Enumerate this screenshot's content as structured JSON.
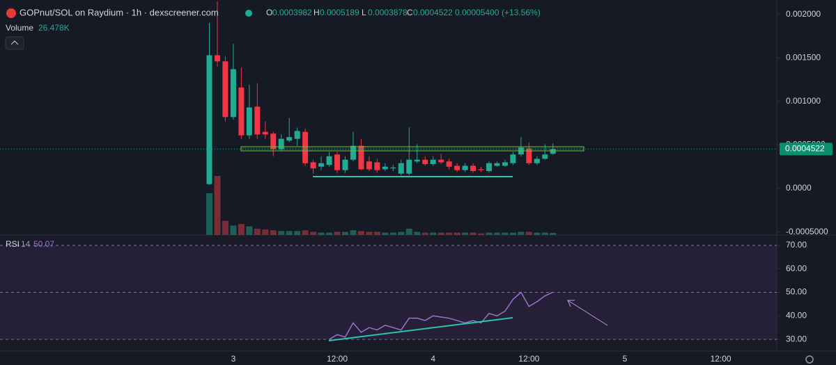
{
  "header": {
    "title": "GOPnut/SOL on Raydium · 1h · dexscreener.com",
    "ohlc_keys": [
      "O",
      "H",
      "L",
      "C"
    ],
    "change": {
      "value": 5.4e-05,
      "label": "0.00005400"
    },
    "change_pct": {
      "value": 13.56,
      "label": "(+13.56%)"
    },
    "volume_title": "Volume"
  },
  "chart_data": [
    {
      "type": "candlestick",
      "categories": [
        null,
        null,
        null,
        "3",
        null,
        null,
        null,
        null,
        null,
        null,
        null,
        null,
        null,
        null,
        null,
        null,
        "12:00",
        null,
        null,
        null,
        null,
        null,
        null,
        null,
        null,
        null,
        null,
        null,
        "4",
        null,
        null,
        null,
        null,
        null,
        null,
        null,
        null,
        null,
        null,
        null,
        "12:00",
        null,
        null,
        null,
        null,
        null,
        null,
        null,
        null,
        null,
        null,
        null,
        "5",
        null,
        null,
        null,
        null,
        null,
        null,
        null,
        null,
        null,
        null,
        null,
        "12:00",
        null,
        null,
        null,
        null,
        null,
        null
      ],
      "open": [
        5e-05,
        0.00153,
        0.00146,
        0.00082,
        0.00116,
        0.00061,
        0.00094,
        0.00065,
        0.00063,
        0.00045,
        0.00055,
        0.00057,
        0.00065,
        0.0003,
        0.00025,
        0.00027,
        0.00039,
        0.00021,
        0.00033,
        0.00049,
        0.00031,
        0.0003,
        0.00022,
        0.00023,
        0.00017,
        0.00017,
        0.00031,
        0.00033,
        0.00028,
        0.00033,
        0.00031,
        0.00026,
        0.00021,
        0.00026,
        0.00022,
        0.0002,
        0.00026,
        0.00026,
        0.00029,
        0.00039,
        0.00046,
        0.00029,
        0.00034,
        0.0003982,
        null,
        null,
        null,
        null,
        null,
        null,
        null,
        null,
        null,
        null,
        null,
        null,
        null,
        null,
        null,
        null,
        null,
        null,
        null,
        null,
        null,
        null,
        null,
        null,
        null,
        null,
        null
      ],
      "high": [
        0.0019,
        0.00215,
        0.00152,
        0.00166,
        0.00139,
        0.00119,
        0.00121,
        0.00077,
        0.00065,
        0.00062,
        0.00081,
        0.0007,
        0.00069,
        0.00033,
        0.00037,
        0.00042,
        0.00042,
        0.00037,
        0.00065,
        0.00057,
        0.00037,
        0.00034,
        0.00029,
        0.00027,
        0.00033,
        0.0007,
        0.00051,
        0.00037,
        0.00037,
        0.0004,
        0.00034,
        0.00029,
        0.00029,
        0.00029,
        0.00025,
        0.00031,
        0.00031,
        0.00033,
        0.00042,
        0.00059,
        0.00053,
        0.00037,
        0.00051,
        0.0005189,
        null,
        null,
        null,
        null,
        null,
        null,
        null,
        null,
        null,
        null,
        null,
        null,
        null,
        null,
        null,
        null,
        null,
        null,
        null,
        null,
        null,
        null,
        null,
        null,
        null,
        null,
        null
      ],
      "low": [
        4e-05,
        0.0014,
        0.00077,
        0.00079,
        0.00057,
        0.00057,
        0.00057,
        0.00057,
        0.00037,
        0.00043,
        0.00053,
        0.00049,
        0.00026,
        0.00017,
        0.00021,
        0.00025,
        0.00018,
        0.00018,
        0.00031,
        0.00021,
        0.0002,
        0.00018,
        0.0002,
        0.0002,
        0.00015,
        0.00015,
        0.00029,
        0.00026,
        0.00026,
        0.00028,
        0.00022,
        0.00019,
        0.00019,
        0.00018,
        0.00019,
        0.00018,
        0.00025,
        0.00025,
        0.00027,
        0.00037,
        0.00027,
        0.00027,
        0.00033,
        0.0003878,
        null,
        null,
        null,
        null,
        null,
        null,
        null,
        null,
        null,
        null,
        null,
        null,
        null,
        null,
        null,
        null,
        null,
        null,
        null,
        null,
        null,
        null,
        null,
        null,
        null,
        null,
        null
      ],
      "close": [
        0.00153,
        0.00146,
        0.00082,
        0.00137,
        0.00061,
        0.00093,
        0.00062,
        0.00062,
        0.00045,
        0.00057,
        0.00059,
        0.00066,
        0.00029,
        0.00023,
        0.00029,
        0.00037,
        0.00021,
        0.00033,
        0.00049,
        0.00022,
        0.00022,
        0.00021,
        0.00025,
        0.00024,
        0.00029,
        0.00033,
        0.00033,
        0.00028,
        0.00033,
        0.0003,
        0.00025,
        0.00021,
        0.00026,
        0.0002,
        0.00021,
        0.00029,
        0.00029,
        0.0003,
        0.00039,
        0.00047,
        0.00029,
        0.00034,
        0.00039,
        0.0004522,
        null,
        null,
        null,
        null,
        null,
        null,
        null,
        null,
        null,
        null,
        null,
        null,
        null,
        null,
        null,
        null,
        null,
        null,
        null,
        null,
        null,
        null,
        null,
        null,
        null,
        null,
        null
      ],
      "volume": [
        530000,
        750000,
        180000,
        120000,
        140000,
        110000,
        80000,
        70000,
        60000,
        50000,
        50000,
        50000,
        60000,
        40000,
        30000,
        30000,
        40000,
        40000,
        60000,
        50000,
        40000,
        40000,
        30000,
        30000,
        40000,
        80000,
        40000,
        30000,
        30000,
        30000,
        30000,
        30000,
        30000,
        30000,
        20000,
        30000,
        30000,
        30000,
        30000,
        40000,
        40000,
        30000,
        30000,
        26478,
        null,
        null,
        null,
        null,
        null,
        null,
        null,
        null,
        null,
        null,
        null,
        null,
        null,
        null,
        null,
        null,
        null,
        null,
        null,
        null,
        null,
        null,
        null,
        null,
        null,
        null,
        null
      ],
      "volume_labels": [
        null,
        null,
        null,
        null,
        null,
        null,
        null,
        null,
        null,
        null,
        null,
        null,
        null,
        null,
        null,
        null,
        null,
        null,
        null,
        null,
        null,
        null,
        null,
        null,
        null,
        null,
        null,
        null,
        null,
        null,
        null,
        null,
        null,
        null,
        null,
        null,
        null,
        null,
        null,
        null,
        null,
        null,
        null,
        "26.478K",
        null,
        null,
        null,
        null,
        null,
        null,
        null,
        null,
        null,
        null,
        null,
        null,
        null,
        null,
        null,
        null,
        null,
        null,
        null,
        null,
        null,
        null,
        null,
        null,
        null,
        null,
        null
      ],
      "ylim": [
        -0.000535,
        0.002165
      ],
      "yticks": [
        {
          "value": 0.002,
          "label": "0.002000"
        },
        {
          "value": 0.0015,
          "label": "0.001500"
        },
        {
          "value": 0.001,
          "label": "0.001000"
        },
        {
          "value": 0.0005,
          "label": "0.0005000"
        },
        {
          "value": 0,
          "label": "0.0000"
        },
        {
          "value": -0.0005,
          "label": "-0.0005000"
        }
      ],
      "colors": {
        "up": "#22ab94",
        "down": "#f23645",
        "volume_up": "#1c5f58",
        "volume_down": "#7a2d36"
      }
    },
    {
      "type": "line",
      "title": "RSI",
      "period": 14,
      "color": "#9575cd",
      "values": [
        null,
        null,
        null,
        null,
        null,
        null,
        null,
        null,
        null,
        null,
        null,
        null,
        null,
        null,
        null,
        30,
        32,
        31,
        37,
        33,
        35,
        34,
        36,
        35,
        34,
        39,
        39,
        38,
        40,
        39.5,
        39,
        38,
        37,
        38,
        37,
        41,
        40,
        42,
        47,
        50,
        44,
        46,
        48.5,
        50.07,
        null,
        null,
        null,
        null,
        null,
        null,
        null,
        null,
        null,
        null,
        null,
        null,
        null,
        null,
        null,
        null,
        null,
        null,
        null,
        null,
        null,
        null,
        null,
        null,
        null,
        null,
        null
      ],
      "ylim": [
        25,
        74.4
      ],
      "yticks": [
        {
          "value": 70,
          "label": "70.00"
        },
        {
          "value": 60,
          "label": "60.00"
        },
        {
          "value": 50,
          "label": "50.00"
        },
        {
          "value": 40,
          "label": "40.00"
        },
        {
          "value": 30,
          "label": "30.00"
        }
      ],
      "levels": [
        70,
        50,
        30
      ]
    }
  ]
}
